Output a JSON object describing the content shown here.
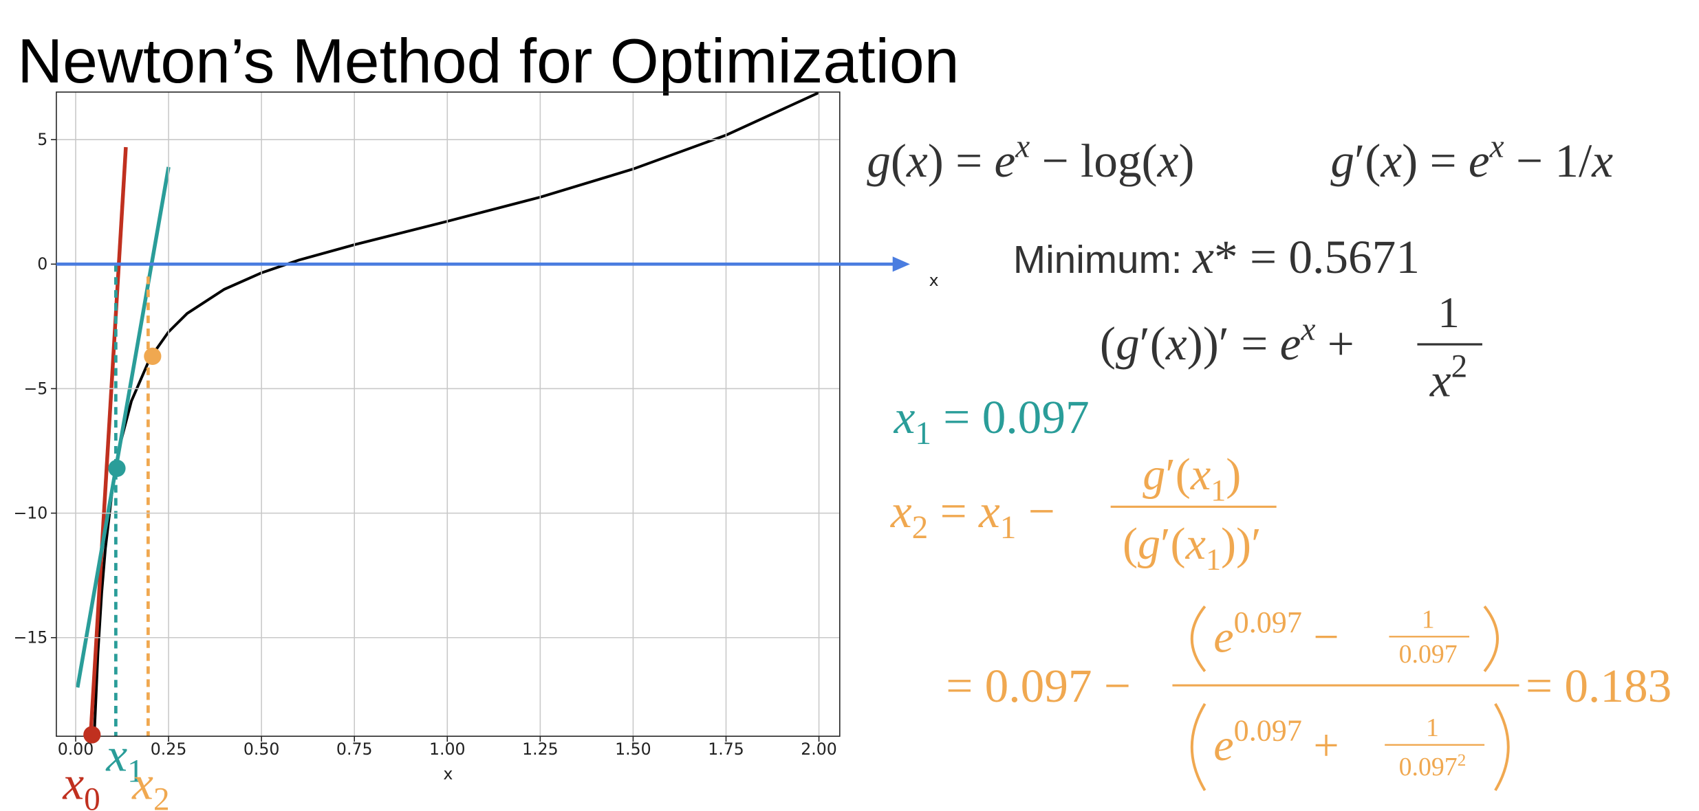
{
  "title": "Newton’s Method for Optimization",
  "chart_data": {
    "type": "line",
    "xlabel": "x",
    "xlim": [
      -0.052,
      2.056
    ],
    "ylim": [
      -18.96,
      6.91
    ],
    "xticks": [
      {
        "value": 0,
        "label": "0.00"
      },
      {
        "value": 0.25,
        "label": "0.25"
      },
      {
        "value": 0.5,
        "label": "0.50"
      },
      {
        "value": 0.75,
        "label": "0.75"
      },
      {
        "value": 1,
        "label": "1.00"
      },
      {
        "value": 1.25,
        "label": "1.25"
      },
      {
        "value": 1.5,
        "label": "1.50"
      },
      {
        "value": 1.75,
        "label": "1.75"
      },
      {
        "value": 2,
        "label": "2.00"
      }
    ],
    "yticks": [
      {
        "value": 5,
        "label": "5"
      },
      {
        "value": 0,
        "label": "0"
      },
      {
        "value": -5,
        "label": "−5"
      },
      {
        "value": -10,
        "label": "−10"
      },
      {
        "value": -15,
        "label": "−15"
      }
    ],
    "grid": true,
    "series": [
      {
        "color": "#000000",
        "x": [
          0.05,
          0.06,
          0.07,
          0.08,
          0.1,
          0.12,
          0.15,
          0.2,
          0.25,
          0.3,
          0.4,
          0.5,
          0.6,
          0.75,
          1,
          1.25,
          1.5,
          1.75,
          2
        ],
        "values": [
          -18.95,
          -15.6,
          -13.21,
          -11.42,
          -8.89,
          -7.21,
          -5.5,
          -3.78,
          -2.72,
          -1.98,
          -1.01,
          -0.35,
          0.16,
          0.78,
          1.72,
          2.69,
          3.82,
          5.18,
          6.89
        ]
      }
    ],
    "tangents": [
      {
        "color": "#c0301f",
        "x": [
          0.04,
          0.135
        ],
        "y": [
          -19,
          4.7
        ]
      },
      {
        "color": "#2a9d99",
        "x": [
          0.005,
          0.25
        ],
        "y": [
          -17,
          3.9
        ]
      }
    ],
    "dashed": [
      {
        "color": "#2a9d99",
        "x": 0.108,
        "y": [
          0,
          -19
        ]
      },
      {
        "color": "#f0a850",
        "x": 0.195,
        "y": [
          -0.5,
          -19
        ]
      }
    ],
    "points": [
      {
        "color": "#c0301f",
        "x": 0.044,
        "y": -18.9
      },
      {
        "color": "#2a9d99",
        "x": 0.111,
        "y": -8.2
      },
      {
        "color": "#f0a850",
        "x": 0.207,
        "y": -3.7
      }
    ],
    "arrow": {
      "color": "#4a7de0",
      "x": [
        -0.052,
        2.245
      ],
      "y": 0,
      "label": "x"
    }
  },
  "point_labels": [
    [
      "x",
      "0"
    ],
    [
      "x",
      "1"
    ],
    [
      "x",
      "2"
    ]
  ],
  "formulas": {
    "g": [
      "g",
      "(",
      "x",
      ") = ",
      "e",
      "x",
      " − log(",
      "x",
      ")"
    ],
    "gp": [
      "g",
      "′(",
      "x",
      ") = ",
      "e",
      "x",
      " − 1/",
      "x"
    ],
    "minimum": [
      "Minimum: ",
      "x",
      "* = 0.5671"
    ],
    "gpp": [
      "(",
      "g",
      "′(",
      "x",
      "))′ = ",
      "e",
      "x",
      " + ",
      "1",
      "x",
      "2"
    ],
    "x1": [
      "x",
      "1",
      " = 0.097"
    ],
    "x2": [
      "x",
      "2",
      " = ",
      "x",
      "1",
      " − ",
      "g",
      "′(",
      "x",
      "1",
      ")",
      "(",
      "g",
      "′(",
      "x",
      "1",
      "))′"
    ],
    "result": [
      "= 0.097 − ",
      "e",
      "0.097",
      " − ",
      "1",
      "0.097",
      "e",
      "0.097",
      " + ",
      "1",
      "0.097",
      "2",
      "= 0.183"
    ]
  }
}
